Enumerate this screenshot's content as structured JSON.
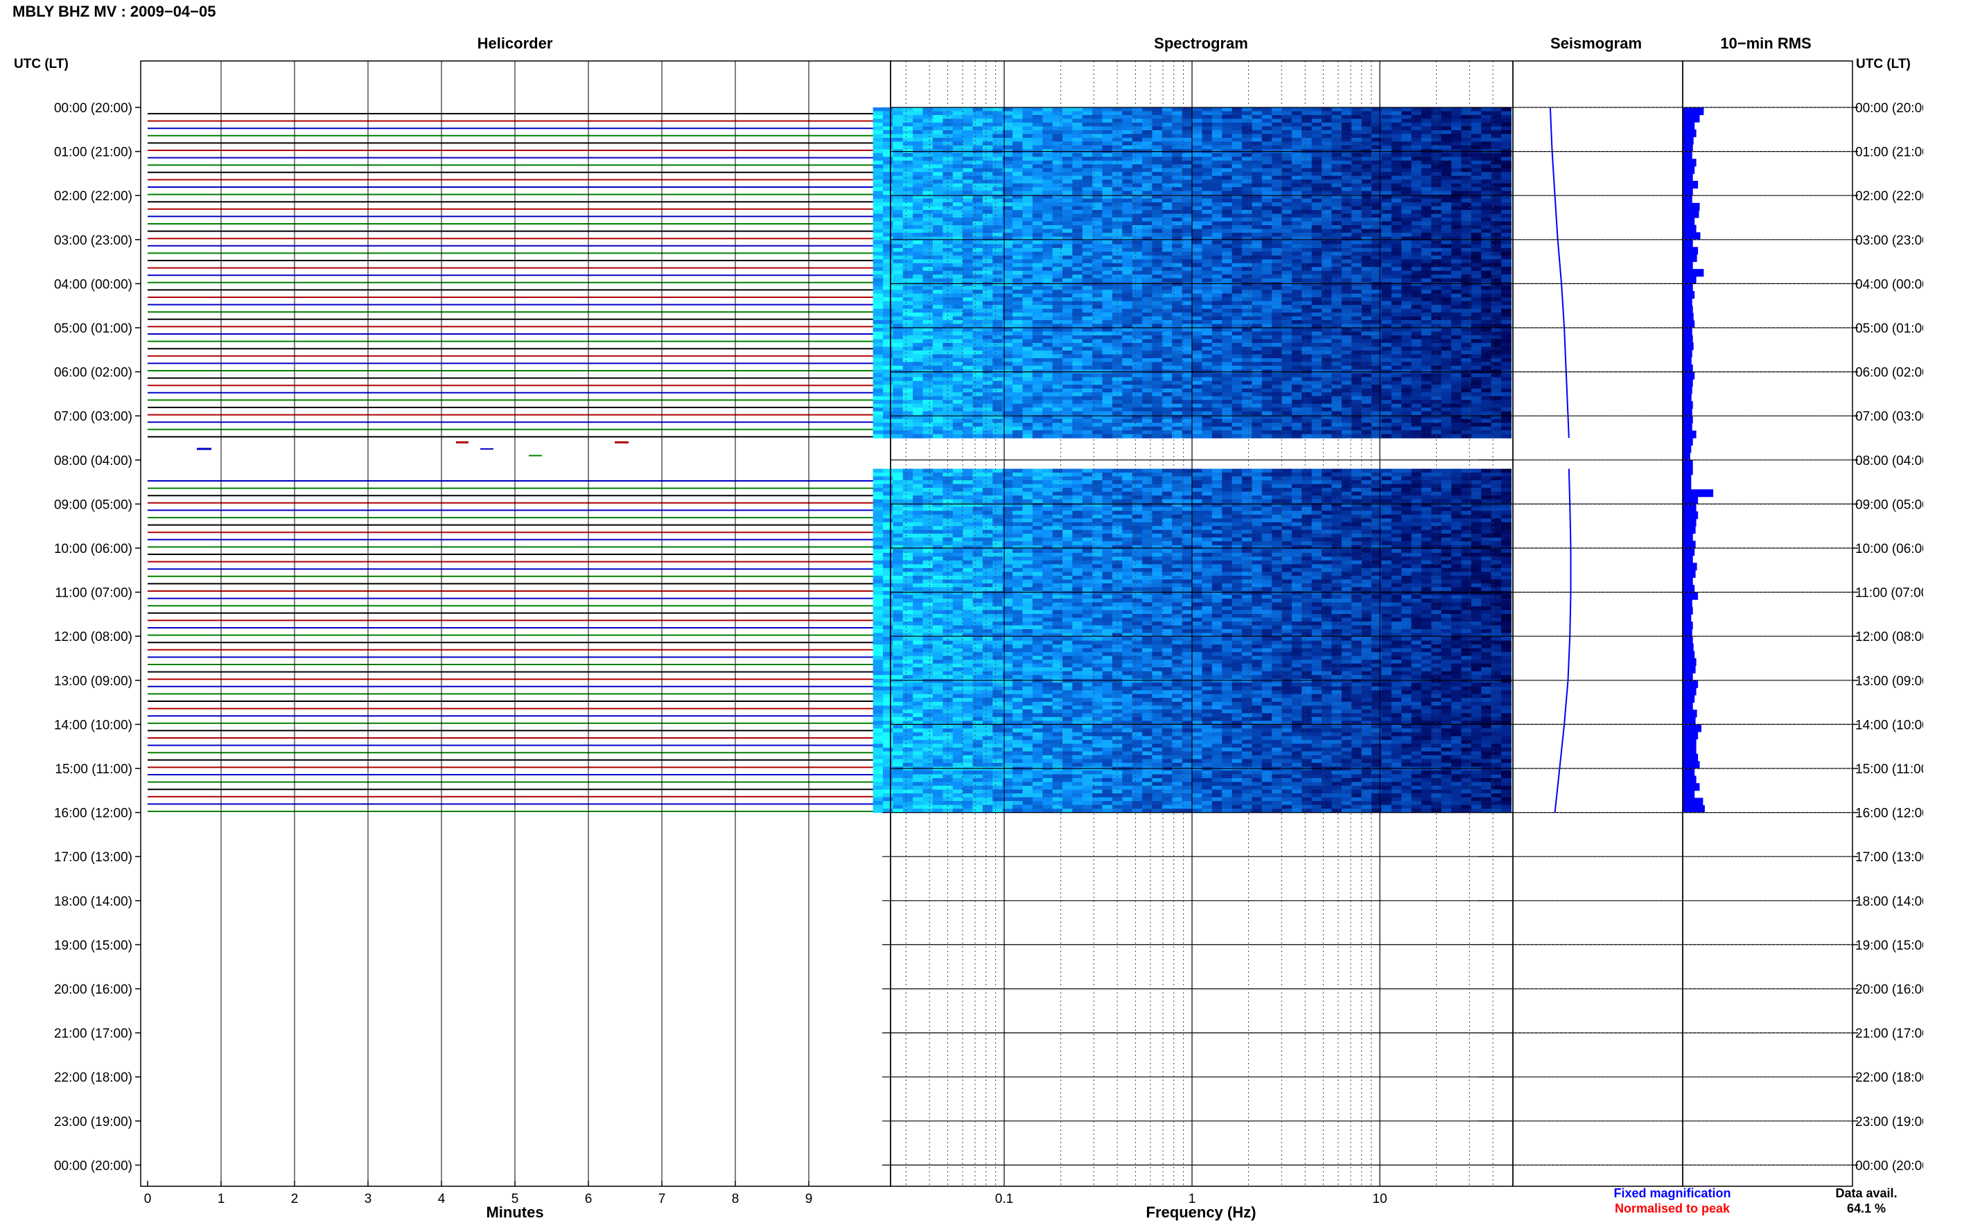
{
  "header": {
    "title": "MBLY BHZ MV : 2009−04−05"
  },
  "panels": {
    "helicorder": "Helicorder",
    "spectrogram": "Spectrogram",
    "seismogram": "Seismogram",
    "rms": "10−min RMS"
  },
  "axis": {
    "left_header": "UTC (LT)",
    "right_header": "UTC (LT)",
    "minutes_label": "Minutes",
    "frequency_label": "Frequency (Hz)"
  },
  "legend": {
    "fixed": "Fixed magnification",
    "normalised": "Normalised to peak",
    "avail_label": "Data avail.",
    "avail_value": "64.1 %"
  },
  "colors": {
    "trace_black": "#000000",
    "trace_red": "#b00000",
    "trace_blue": "#0000c8",
    "trace_green": "#008000",
    "spectrogram_low": "#00003c",
    "spectrogram_high": "#19ffff",
    "fixed_legend": "#0000ff",
    "normalised_legend": "#ff0000"
  },
  "chart_data": {
    "type": "heatmap",
    "hours": [
      "00:00 (20:00)",
      "01:00 (21:00)",
      "02:00 (22:00)",
      "03:00 (23:00)",
      "04:00 (00:00)",
      "05:00 (01:00)",
      "06:00 (02:00)",
      "07:00 (03:00)",
      "08:00 (04:00)",
      "09:00 (05:00)",
      "10:00 (06:00)",
      "11:00 (07:00)",
      "12:00 (08:00)",
      "13:00 (09:00)",
      "14:00 (10:00)",
      "15:00 (11:00)",
      "16:00 (12:00)",
      "17:00 (13:00)",
      "18:00 (14:00)",
      "19:00 (15:00)",
      "20:00 (16:00)",
      "21:00 (17:00)",
      "22:00 (18:00)",
      "23:00 (19:00)",
      "00:00 (20:00)"
    ],
    "minutes_ticks": [
      "0",
      "1",
      "2",
      "3",
      "4",
      "5",
      "6",
      "7",
      "8",
      "9"
    ],
    "minutes_range": [
      0,
      10
    ],
    "frequency_ticks": [
      "0.1",
      "1",
      "10"
    ],
    "frequency_range": [
      0.02,
      50
    ],
    "frequency_scale": "log",
    "data_gaps": [
      [
        0,
        7.5,
        8.2,
        16.0
      ]
    ],
    "helicorder_colors": [
      "#000000",
      "#b00000",
      "#0000c8",
      "#008000"
    ],
    "seismogram": {
      "times": [
        0,
        1,
        2,
        3,
        4,
        5,
        6,
        7,
        7.5,
        8.2,
        9,
        10,
        11,
        12,
        13,
        14,
        15,
        16
      ],
      "values": [
        0.4,
        0.42,
        0.45,
        0.48,
        0.52,
        0.55,
        0.57,
        0.59,
        0.6,
        0.6,
        0.61,
        0.62,
        0.62,
        0.61,
        0.59,
        0.55,
        0.5,
        0.45
      ]
    },
    "rms_10min": [
      0.62,
      0.5,
      0.35,
      0.4,
      0.32,
      0.3,
      0.28,
      0.4,
      0.35,
      0.3,
      0.45,
      0.3,
      0.28,
      0.5,
      0.48,
      0.35,
      0.4,
      0.52,
      0.3,
      0.45,
      0.42,
      0.3,
      0.62,
      0.4,
      0.3,
      0.35,
      0.28,
      0.3,
      0.32,
      0.35,
      0.28,
      0.3,
      0.32,
      0.28,
      0.26,
      0.3,
      0.35,
      0.3,
      0.28,
      0.26,
      0.3,
      0.28,
      0.3,
      0.28,
      0.4,
      0.3,
      0.25,
      0.22,
      0.3,
      0.3,
      0.25,
      0.25,
      0.9,
      0.45,
      0.4,
      0.45,
      0.4,
      0.38,
      0.3,
      0.38,
      0.35,
      0.3,
      0.42,
      0.38,
      0.3,
      0.35,
      0.45,
      0.28,
      0.3,
      0.25,
      0.3,
      0.28,
      0.3,
      0.32,
      0.35,
      0.4,
      0.38,
      0.3,
      0.45,
      0.4,
      0.35,
      0.3,
      0.42,
      0.38,
      0.55,
      0.45,
      0.4,
      0.4,
      0.45,
      0.5,
      0.35,
      0.4,
      0.5,
      0.35,
      0.6,
      0.65
    ],
    "rms_range": [
      0,
      1.4
    ]
  }
}
